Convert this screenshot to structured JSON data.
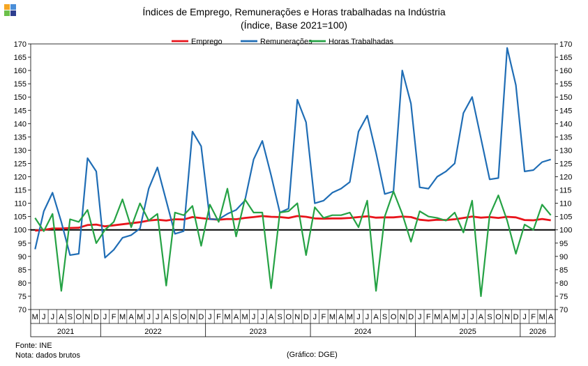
{
  "title": "Índices de Emprego, Remunerações e Horas trabalhadas na Indústria",
  "subtitle": "(Índice, Base 2021=100)",
  "source": "Fonte: INE",
  "note": "Nota: dados brutos",
  "credit": "(Gráfico: DGE)",
  "logo_colors": [
    "#f5a623",
    "#4a8ed8",
    "#6cc04a",
    "#2e3f8f"
  ],
  "chart_data": {
    "type": "line",
    "ylim": [
      70,
      170
    ],
    "y_ticks": [
      70,
      75,
      80,
      85,
      90,
      95,
      100,
      105,
      110,
      115,
      120,
      125,
      130,
      135,
      140,
      145,
      150,
      155,
      160,
      165,
      170
    ],
    "reference_line": 100,
    "grid": false,
    "legend_position": "top",
    "x": [
      "M",
      "J",
      "J",
      "A",
      "S",
      "O",
      "N",
      "D",
      "J",
      "F",
      "M",
      "A",
      "M",
      "J",
      "J",
      "A",
      "S",
      "O",
      "N",
      "D",
      "J",
      "F",
      "M",
      "A",
      "M",
      "J",
      "J",
      "A",
      "S",
      "O",
      "N",
      "D",
      "J",
      "F",
      "M",
      "A",
      "M",
      "J",
      "J",
      "A",
      "S",
      "O",
      "N",
      "D",
      "J",
      "F",
      "M",
      "A",
      "M",
      "J",
      "J",
      "A",
      "S",
      "O",
      "N",
      "D",
      "J",
      "F",
      "M",
      "A"
    ],
    "years": [
      {
        "label": "2021",
        "start": 0,
        "end": 7
      },
      {
        "label": "2022",
        "start": 8,
        "end": 19
      },
      {
        "label": "2023",
        "start": 20,
        "end": 31
      },
      {
        "label": "2024",
        "start": 32,
        "end": 43
      },
      {
        "label": "2025",
        "start": 44,
        "end": 55
      },
      {
        "label": "2026",
        "start": 56,
        "end": 59
      }
    ],
    "series": [
      {
        "name": "Emprego",
        "color": "#e8141b",
        "values": [
          99.7,
          100.0,
          100.5,
          100.5,
          100.7,
          100.8,
          101.8,
          102.0,
          101.3,
          101.7,
          102.1,
          102.5,
          102.9,
          103.5,
          103.8,
          103.5,
          104.0,
          103.9,
          104.8,
          104.4,
          104.1,
          103.8,
          104.1,
          104.0,
          104.5,
          104.8,
          105.2,
          104.9,
          104.8,
          104.5,
          105.2,
          104.9,
          104.3,
          104.2,
          104.3,
          104.3,
          104.5,
          104.8,
          105.1,
          104.6,
          104.7,
          104.7,
          105.0,
          104.8,
          103.8,
          103.5,
          103.8,
          103.7,
          104.0,
          104.5,
          105.0,
          104.6,
          104.8,
          104.5,
          104.9,
          104.7,
          103.7,
          103.6,
          104.1,
          103.6
        ]
      },
      {
        "name": "Remunerações",
        "color": "#1f6db5",
        "values": [
          92.7,
          107.0,
          114.0,
          103.0,
          90.5,
          91.0,
          127.0,
          122.0,
          89.5,
          92.5,
          97.0,
          98.0,
          100.5,
          115.5,
          123.5,
          111.0,
          98.5,
          99.5,
          137.0,
          131.5,
          104.0,
          104.0,
          106.0,
          107.5,
          111.0,
          126.5,
          133.5,
          120.5,
          106.5,
          108.0,
          149.0,
          140.5,
          110.0,
          111.0,
          114.0,
          115.5,
          118.0,
          137.0,
          143.0,
          129.0,
          113.5,
          114.5,
          160.0,
          147.5,
          116.0,
          115.5,
          120.0,
          122.0,
          125.0,
          144.0,
          150.0,
          134.5,
          119.0,
          119.5,
          168.5,
          154.5,
          122.0,
          122.5,
          125.5,
          126.5
        ]
      },
      {
        "name": "Horas Trabalhadas",
        "color": "#25a244",
        "values": [
          104.5,
          99.5,
          106.0,
          77.0,
          104.0,
          103.0,
          107.5,
          95.0,
          100.0,
          103.0,
          111.5,
          101.0,
          110.0,
          103.5,
          106.0,
          79.0,
          106.5,
          105.5,
          109.0,
          94.0,
          109.5,
          103.0,
          115.5,
          97.5,
          111.5,
          106.5,
          106.5,
          78.0,
          106.5,
          107.0,
          110.0,
          90.5,
          108.5,
          104.5,
          105.5,
          105.5,
          106.5,
          101.0,
          111.0,
          77.0,
          105.0,
          114.5,
          106.0,
          95.5,
          107.0,
          105.0,
          104.5,
          103.5,
          106.5,
          99.0,
          111.0,
          75.0,
          105.5,
          113.0,
          103.5,
          91.0,
          102.0,
          100.0,
          109.5,
          105.5
        ]
      }
    ]
  }
}
